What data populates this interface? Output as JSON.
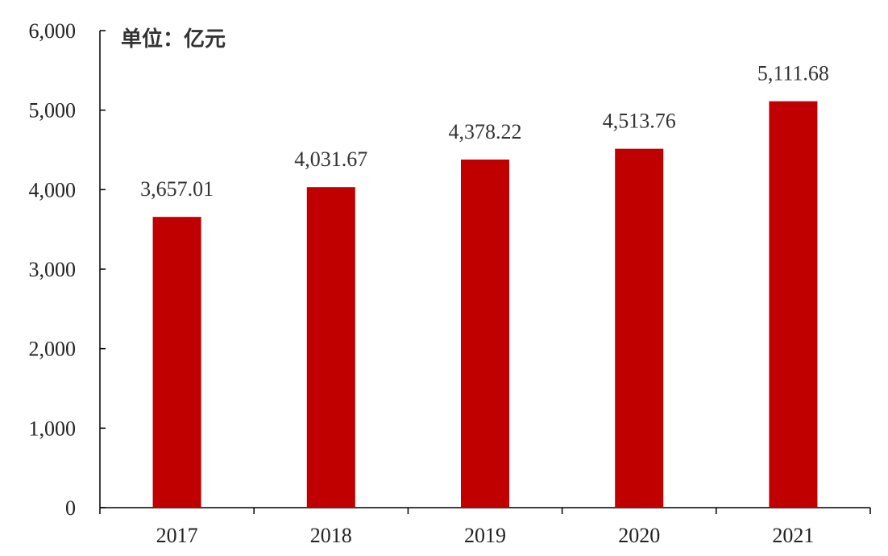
{
  "chart_data": {
    "type": "bar",
    "unit_label": "单位：亿元",
    "categories": [
      "2017",
      "2018",
      "2019",
      "2020",
      "2021"
    ],
    "values": [
      3657.01,
      4031.67,
      4378.22,
      4513.76,
      5111.68
    ],
    "data_labels": [
      "3,657.01",
      "4,031.67",
      "4,378.22",
      "4,513.76",
      "5,111.68"
    ],
    "ylim": [
      0,
      6000
    ],
    "yticks": [
      0,
      1000,
      2000,
      3000,
      4000,
      5000,
      6000
    ],
    "ytick_labels": [
      "0",
      "1,000",
      "2,000",
      "3,000",
      "4,000",
      "5,000",
      "6,000"
    ],
    "bar_color": "#c00000",
    "grid": false,
    "legend": "none"
  }
}
